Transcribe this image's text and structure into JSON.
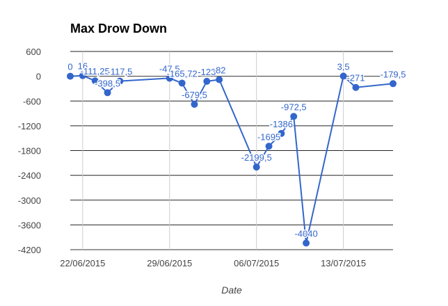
{
  "chart_data": {
    "type": "line",
    "title": "Max Drow Down",
    "xlabel": "Date",
    "ylabel": "",
    "ylim": [
      -4200,
      600
    ],
    "yticks": [
      600,
      0,
      -600,
      -1200,
      -1800,
      -2400,
      -3000,
      -3600,
      -4200
    ],
    "ytick_labels": [
      "600",
      "0",
      "-600",
      "-1200",
      "-1800",
      "-2400",
      "-3000",
      "-3600",
      "-4200"
    ],
    "xlim": [
      "2015-06-21",
      "2015-07-17"
    ],
    "xticks": [
      {
        "date": "2015-06-22",
        "label": "22/06/2015"
      },
      {
        "date": "2015-06-29",
        "label": "29/06/2015"
      },
      {
        "date": "2015-07-06",
        "label": "06/07/2015"
      },
      {
        "date": "2015-07-13",
        "label": "13/07/2015"
      }
    ],
    "color": "#3366cc",
    "grid": true,
    "legend": "none",
    "series": [
      {
        "points": [
          {
            "x": "2015-06-21",
            "y": 0,
            "label": "0"
          },
          {
            "x": "2015-06-22",
            "y": 16,
            "label": "16"
          },
          {
            "x": "2015-06-23",
            "y": -111.25,
            "label": "-111,25"
          },
          {
            "x": "2015-06-24",
            "y": -398.5,
            "label": "-398,5"
          },
          {
            "x": "2015-06-25",
            "y": -117.5,
            "label": "-117,5"
          },
          {
            "x": "2015-06-29",
            "y": -47.5,
            "label": "-47,5"
          },
          {
            "x": "2015-06-30",
            "y": -165.72,
            "label": "-165,72"
          },
          {
            "x": "2015-07-01",
            "y": -679.5,
            "label": "-679,5"
          },
          {
            "x": "2015-07-02",
            "y": -123,
            "label": "-123"
          },
          {
            "x": "2015-07-03",
            "y": -82,
            "label": "-82"
          },
          {
            "x": "2015-07-06",
            "y": -2199.5,
            "label": "-2199,5"
          },
          {
            "x": "2015-07-07",
            "y": -1695,
            "label": "-1695"
          },
          {
            "x": "2015-07-08",
            "y": -1386,
            "label": "-1386"
          },
          {
            "x": "2015-07-09",
            "y": -972.5,
            "label": "-972,5"
          },
          {
            "x": "2015-07-10",
            "y": -4040,
            "label": "-4040"
          },
          {
            "x": "2015-07-13",
            "y": 3.5,
            "label": "3,5"
          },
          {
            "x": "2015-07-14",
            "y": -271,
            "label": "-271"
          },
          {
            "x": "2015-07-17",
            "y": -179.5,
            "label": "-179,5"
          }
        ]
      }
    ]
  }
}
